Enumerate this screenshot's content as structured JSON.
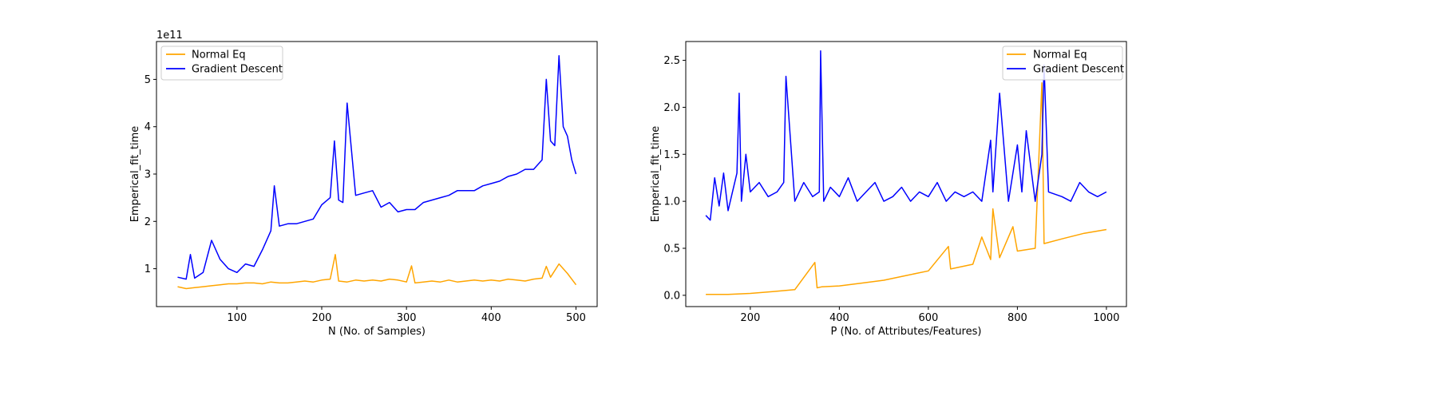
{
  "colors": {
    "normal_eq": "#FFA500",
    "gradient_descent": "#0000FF",
    "axes": "#000000",
    "background": "#FFFFFF"
  },
  "chart_data": [
    {
      "type": "line",
      "xlabel": "N (No. of Samples)",
      "ylabel": "Emperical_fit_time",
      "offset_label": "1e11",
      "xlim": [
        5,
        525
      ],
      "ylim": [
        0.2,
        5.8
      ],
      "xticks": [
        100,
        200,
        300,
        400,
        500
      ],
      "xtick_labels": [
        "100",
        "200",
        "300",
        "400",
        "500"
      ],
      "yticks": [
        1,
        2,
        3,
        4,
        5
      ],
      "ytick_labels": [
        "1",
        "2",
        "3",
        "4",
        "5"
      ],
      "legend": {
        "placement": "upper-left",
        "entries": [
          "Normal Eq",
          "Gradient Descent"
        ]
      },
      "grid": false,
      "series": [
        {
          "name": "Normal Eq",
          "color": "#FFA500",
          "x": [
            30,
            40,
            50,
            60,
            70,
            80,
            90,
            100,
            110,
            120,
            130,
            140,
            150,
            160,
            170,
            180,
            190,
            200,
            210,
            216,
            220,
            230,
            240,
            250,
            260,
            270,
            280,
            290,
            300,
            306,
            310,
            320,
            330,
            340,
            350,
            360,
            370,
            380,
            390,
            400,
            410,
            420,
            430,
            440,
            450,
            460,
            465,
            470,
            480,
            490,
            500
          ],
          "y": [
            0.62,
            0.58,
            0.6,
            0.62,
            0.64,
            0.66,
            0.68,
            0.68,
            0.7,
            0.7,
            0.68,
            0.72,
            0.7,
            0.7,
            0.72,
            0.74,
            0.72,
            0.76,
            0.78,
            1.3,
            0.74,
            0.72,
            0.76,
            0.74,
            0.76,
            0.74,
            0.78,
            0.76,
            0.72,
            1.06,
            0.7,
            0.72,
            0.74,
            0.72,
            0.76,
            0.72,
            0.74,
            0.76,
            0.74,
            0.76,
            0.74,
            0.78,
            0.76,
            0.74,
            0.78,
            0.8,
            1.05,
            0.82,
            1.1,
            0.9,
            0.66
          ]
        },
        {
          "name": "Gradient Descent",
          "color": "#0000FF",
          "x": [
            30,
            40,
            45,
            50,
            60,
            70,
            80,
            90,
            100,
            110,
            120,
            130,
            140,
            144,
            150,
            160,
            170,
            180,
            190,
            200,
            210,
            215,
            220,
            225,
            230,
            240,
            250,
            260,
            270,
            280,
            290,
            300,
            310,
            320,
            330,
            340,
            350,
            360,
            370,
            380,
            390,
            400,
            410,
            420,
            430,
            440,
            450,
            460,
            465,
            470,
            475,
            480,
            485,
            490,
            495,
            500
          ],
          "y": [
            0.82,
            0.78,
            1.3,
            0.8,
            0.92,
            1.6,
            1.2,
            1.0,
            0.92,
            1.1,
            1.05,
            1.4,
            1.8,
            2.75,
            1.9,
            1.95,
            1.95,
            2.0,
            2.05,
            2.35,
            2.5,
            3.7,
            2.45,
            2.4,
            4.5,
            2.55,
            2.6,
            2.65,
            2.3,
            2.4,
            2.2,
            2.25,
            2.25,
            2.4,
            2.45,
            2.5,
            2.55,
            2.65,
            2.65,
            2.65,
            2.75,
            2.8,
            2.85,
            2.95,
            3.0,
            3.1,
            3.1,
            3.3,
            5.0,
            3.7,
            3.6,
            5.5,
            4.0,
            3.8,
            3.3,
            3.0
          ]
        }
      ]
    },
    {
      "type": "line",
      "xlabel": "P (No. of Attributes/Features)",
      "ylabel": "Emperical_fit_time",
      "offset_label": "",
      "xlim": [
        55,
        1045
      ],
      "ylim": [
        -0.12,
        2.7
      ],
      "xticks": [
        200,
        400,
        600,
        800,
        1000
      ],
      "xtick_labels": [
        "200",
        "400",
        "600",
        "800",
        "1000"
      ],
      "yticks": [
        0.0,
        0.5,
        1.0,
        1.5,
        2.0,
        2.5
      ],
      "ytick_labels": [
        "0.0",
        "0.5",
        "1.0",
        "1.5",
        "2.0",
        "2.5"
      ],
      "legend": {
        "placement": "upper-right",
        "entries": [
          "Normal Eq",
          "Gradient Descent"
        ]
      },
      "grid": false,
      "series": [
        {
          "name": "Normal Eq",
          "color": "#FFA500",
          "x": [
            100,
            150,
            200,
            250,
            300,
            345,
            350,
            360,
            400,
            450,
            500,
            550,
            600,
            645,
            650,
            700,
            720,
            740,
            745,
            760,
            790,
            800,
            840,
            855,
            860,
            900,
            950,
            1000
          ],
          "y": [
            0.01,
            0.01,
            0.02,
            0.04,
            0.06,
            0.35,
            0.08,
            0.09,
            0.1,
            0.13,
            0.16,
            0.21,
            0.26,
            0.52,
            0.28,
            0.33,
            0.62,
            0.38,
            0.92,
            0.4,
            0.73,
            0.47,
            0.5,
            2.26,
            0.55,
            0.6,
            0.66,
            0.7
          ]
        },
        {
          "name": "Gradient Descent",
          "color": "#0000FF",
          "x": [
            100,
            110,
            120,
            130,
            140,
            150,
            160,
            170,
            175,
            180,
            190,
            200,
            220,
            240,
            260,
            275,
            280,
            300,
            320,
            340,
            355,
            358,
            365,
            380,
            400,
            420,
            440,
            460,
            480,
            500,
            520,
            540,
            560,
            580,
            600,
            620,
            640,
            660,
            680,
            700,
            720,
            740,
            745,
            760,
            780,
            800,
            810,
            820,
            840,
            855,
            860,
            870,
            900,
            920,
            940,
            960,
            980,
            1000
          ],
          "y": [
            0.85,
            0.8,
            1.25,
            0.95,
            1.3,
            0.9,
            1.1,
            1.3,
            2.15,
            1.0,
            1.5,
            1.1,
            1.2,
            1.05,
            1.1,
            1.2,
            2.33,
            1.0,
            1.2,
            1.05,
            1.1,
            2.6,
            1.0,
            1.15,
            1.05,
            1.25,
            1.0,
            1.1,
            1.2,
            1.0,
            1.05,
            1.15,
            1.0,
            1.1,
            1.05,
            1.2,
            1.0,
            1.1,
            1.05,
            1.1,
            1.0,
            1.65,
            1.1,
            2.15,
            1.0,
            1.6,
            1.1,
            1.75,
            1.0,
            1.5,
            2.45,
            1.1,
            1.05,
            1.0,
            1.2,
            1.1,
            1.05,
            1.1
          ]
        }
      ]
    }
  ]
}
